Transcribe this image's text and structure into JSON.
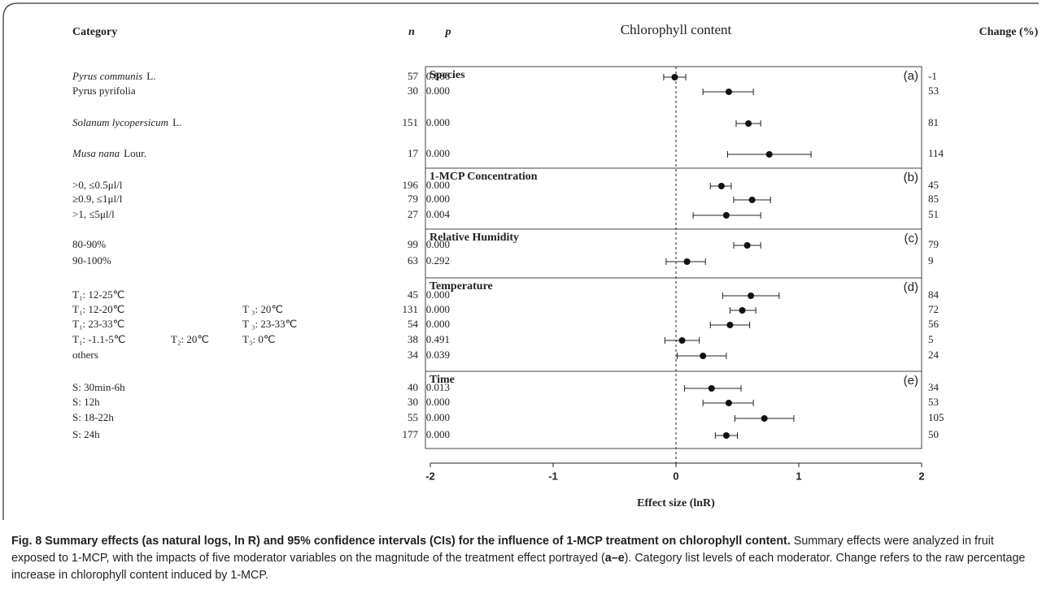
{
  "chart_data": {
    "type": "forest",
    "title": "Chlorophyll content",
    "header_category": "Category",
    "header_n": "n",
    "header_p": "p",
    "header_change": "Change (%)",
    "xlabel": "Effect size (lnR)",
    "xlim": [
      -2,
      2
    ],
    "xticks": [
      -2,
      -1,
      0,
      1,
      2
    ],
    "reference_line": 0,
    "panels": [
      {
        "label": "Species",
        "tag": "(a)",
        "rows": [
          {
            "category": "Pyrus communis",
            "authority": "L.",
            "n": 57,
            "p": "0.866",
            "effect": -0.01,
            "lower": -0.1,
            "upper": 0.08,
            "change": -1
          },
          {
            "category": "Pyrus pyrifolia",
            "n": 30,
            "p": "0.000",
            "effect": 0.43,
            "lower": 0.22,
            "upper": 0.63,
            "change": 53
          },
          {
            "category": "Solanum lycopersicum",
            "authority": "L.",
            "n": 151,
            "p": "0.000",
            "effect": 0.59,
            "lower": 0.49,
            "upper": 0.69,
            "change": 81
          },
          {
            "category": "Musa nana",
            "authority": "Lour.",
            "n": 17,
            "p": "0.000",
            "effect": 0.76,
            "lower": 0.42,
            "upper": 1.1,
            "change": 114
          }
        ]
      },
      {
        "label": "1-MCP Concentration",
        "tag": "(b)",
        "rows": [
          {
            "category": ">0, ≤0.5μl/l",
            "n": 196,
            "p": "0.000",
            "effect": 0.37,
            "lower": 0.28,
            "upper": 0.45,
            "change": 45
          },
          {
            "category": "≥0.9, ≤1μl/l",
            "n": 79,
            "p": "0.000",
            "effect": 0.62,
            "lower": 0.47,
            "upper": 0.77,
            "change": 85
          },
          {
            "category": ">1, ≤5μl/l",
            "n": 27,
            "p": "0.004",
            "effect": 0.41,
            "lower": 0.14,
            "upper": 0.69,
            "change": 51
          }
        ]
      },
      {
        "label": "Relative Humidity",
        "tag": "(c)",
        "rows": [
          {
            "category": "80-90%",
            "n": 99,
            "p": "0.000",
            "effect": 0.58,
            "lower": 0.47,
            "upper": 0.69,
            "change": 79
          },
          {
            "category": "90-100%",
            "n": 63,
            "p": "0.292",
            "effect": 0.09,
            "lower": -0.08,
            "upper": 0.24,
            "change": 9
          }
        ]
      },
      {
        "label": "Temperature",
        "tag": "(d)",
        "rows": [
          {
            "t1": "T₁: 12-25℃",
            "n": 45,
            "p": "0.000",
            "effect": 0.61,
            "lower": 0.38,
            "upper": 0.84,
            "change": 84
          },
          {
            "t1": "T₁: 12-20℃",
            "t3": "T ₃: 20℃",
            "n": 131,
            "p": "0.000",
            "effect": 0.54,
            "lower": 0.44,
            "upper": 0.65,
            "change": 72
          },
          {
            "t1": "T₁: 23-33℃",
            "t3": "T ₃: 23-33℃",
            "n": 54,
            "p": "0.000",
            "effect": 0.44,
            "lower": 0.28,
            "upper": 0.6,
            "change": 56
          },
          {
            "t1": "T₁: -1.1-5℃",
            "t2": "T₂: 20℃",
            "t3": "T₃: 0℃",
            "n": 38,
            "p": "0.491",
            "effect": 0.05,
            "lower": -0.09,
            "upper": 0.19,
            "change": 5
          },
          {
            "category": "others",
            "n": 34,
            "p": "0.039",
            "effect": 0.22,
            "lower": 0.01,
            "upper": 0.41,
            "change": 24
          }
        ]
      },
      {
        "label": "Time",
        "tag": "(e)",
        "rows": [
          {
            "category": "S: 30min-6h",
            "n": 40,
            "p": "0.013",
            "effect": 0.29,
            "lower": 0.07,
            "upper": 0.53,
            "change": 34
          },
          {
            "category": "S: 12h",
            "n": 30,
            "p": "0.000",
            "effect": 0.43,
            "lower": 0.22,
            "upper": 0.63,
            "change": 53
          },
          {
            "category": "S: 18-22h",
            "n": 55,
            "p": "0.000",
            "effect": 0.72,
            "lower": 0.48,
            "upper": 0.96,
            "change": 105
          },
          {
            "category": "S: 24h",
            "n": 177,
            "p": "0.000",
            "effect": 0.41,
            "lower": 0.32,
            "upper": 0.5,
            "change": 50
          }
        ]
      }
    ],
    "caption_title": "Fig. 8 Summary effects (as natural logs, ln R) and 95% confidence intervals (CIs) for the influence of 1-MCP treatment on chlorophyll content.",
    "caption_text": [
      "Summary effects were analyzed in fruit exposed to 1-MCP, with the impacts of five moderator variables on the magnitude of the treatment effect portrayed (",
      "a–e",
      "). Category list levels of each moderator. Change refers to the raw percentage increase in chlorophyll content induced by 1-MCP."
    ]
  }
}
